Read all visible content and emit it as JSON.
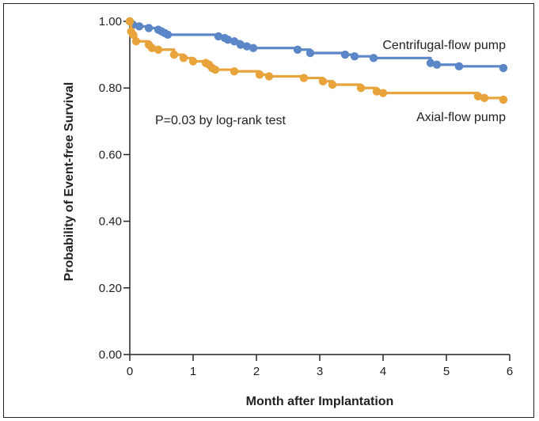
{
  "chart_data": {
    "type": "line",
    "step": true,
    "xlabel": "Month after Implantation",
    "ylabel": "Probability of Event-free Survival",
    "xlim": [
      0,
      6
    ],
    "ylim": [
      0,
      1
    ],
    "x_ticks": [
      "0",
      "1",
      "2",
      "3",
      "4",
      "5",
      "6"
    ],
    "y_ticks": [
      "0.00",
      "0.20",
      "0.40",
      "0.60",
      "0.80",
      "1.00"
    ],
    "annotation": "P=0.03 by log-rank test",
    "grid": false,
    "series": [
      {
        "name": "Centrifugal-flow pump",
        "color": "#5b87c8",
        "steps": [
          [
            0,
            1.0
          ],
          [
            0.05,
            0.99
          ],
          [
            0.15,
            0.985
          ],
          [
            0.3,
            0.98
          ],
          [
            0.45,
            0.975
          ],
          [
            0.5,
            0.97
          ],
          [
            0.55,
            0.965
          ],
          [
            0.6,
            0.96
          ],
          [
            1.4,
            0.955
          ],
          [
            1.5,
            0.95
          ],
          [
            1.55,
            0.945
          ],
          [
            1.65,
            0.94
          ],
          [
            1.75,
            0.93
          ],
          [
            1.85,
            0.925
          ],
          [
            1.95,
            0.92
          ],
          [
            2.65,
            0.915
          ],
          [
            2.85,
            0.905
          ],
          [
            3.4,
            0.9
          ],
          [
            3.55,
            0.895
          ],
          [
            3.85,
            0.89
          ],
          [
            4.75,
            0.875
          ],
          [
            4.85,
            0.87
          ],
          [
            5.2,
            0.865
          ],
          [
            5.9,
            0.86
          ]
        ],
        "censored": [
          0.05,
          0.15,
          0.3,
          0.45,
          0.5,
          0.55,
          0.6,
          1.4,
          1.5,
          1.55,
          1.65,
          1.75,
          1.85,
          1.95,
          2.65,
          2.85,
          3.4,
          3.55,
          3.85,
          4.75,
          4.85,
          5.2,
          5.9
        ]
      },
      {
        "name": "Axial-flow pump",
        "color": "#e8a33a",
        "steps": [
          [
            0,
            1.0
          ],
          [
            0.02,
            0.97
          ],
          [
            0.05,
            0.96
          ],
          [
            0.1,
            0.94
          ],
          [
            0.3,
            0.93
          ],
          [
            0.35,
            0.92
          ],
          [
            0.45,
            0.915
          ],
          [
            0.7,
            0.9
          ],
          [
            0.85,
            0.89
          ],
          [
            1.0,
            0.88
          ],
          [
            1.2,
            0.875
          ],
          [
            1.25,
            0.87
          ],
          [
            1.3,
            0.86
          ],
          [
            1.35,
            0.855
          ],
          [
            1.65,
            0.85
          ],
          [
            2.05,
            0.84
          ],
          [
            2.2,
            0.835
          ],
          [
            2.75,
            0.83
          ],
          [
            3.05,
            0.82
          ],
          [
            3.2,
            0.81
          ],
          [
            3.65,
            0.8
          ],
          [
            3.9,
            0.79
          ],
          [
            4.0,
            0.785
          ],
          [
            5.5,
            0.775
          ],
          [
            5.6,
            0.77
          ],
          [
            5.9,
            0.765
          ]
        ],
        "censored": [
          0.02,
          0.05,
          0.1,
          0.3,
          0.35,
          0.45,
          0.7,
          0.85,
          1.0,
          1.2,
          1.25,
          1.3,
          1.35,
          1.65,
          2.05,
          2.2,
          2.75,
          3.05,
          3.2,
          3.65,
          3.9,
          4.0,
          5.5,
          5.6,
          5.9
        ]
      }
    ]
  }
}
